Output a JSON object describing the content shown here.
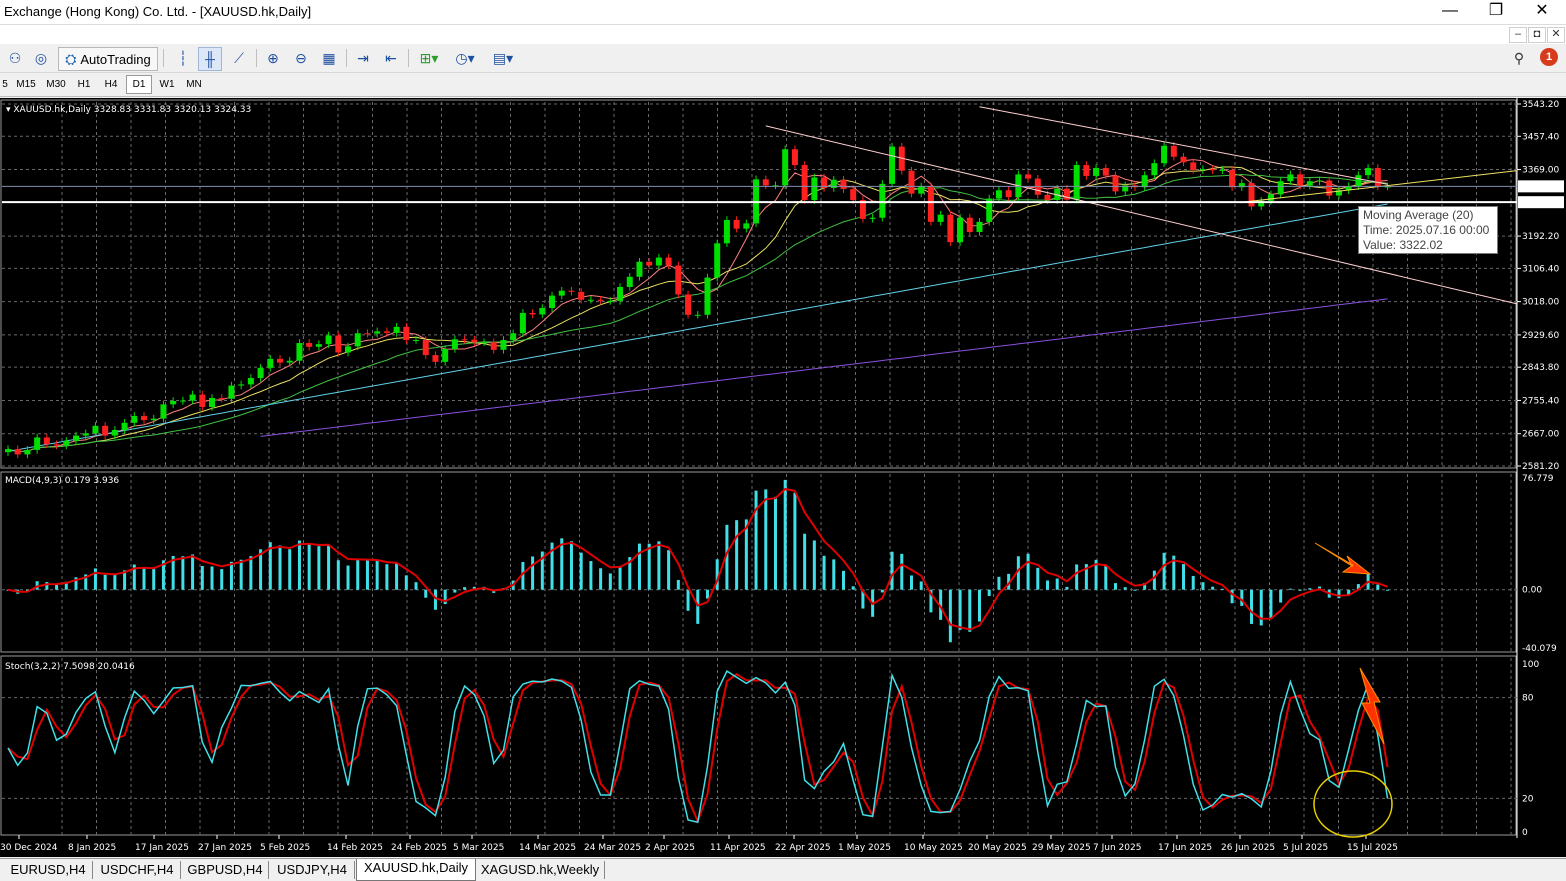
{
  "window": {
    "title": "Exchange (Hong Kong) Co. Ltd. - [XAUUSD.hk,Daily]",
    "minimize": "—",
    "restore": "❐",
    "close": "✕"
  },
  "menubar": {
    "min": "–",
    "restore": "◘",
    "close": "✕"
  },
  "toolbar": {
    "autotrading_label": "AutoTrading",
    "notification_count": "1"
  },
  "timeframes": [
    "5",
    "M15",
    "M30",
    "H1",
    "H4",
    "D1",
    "W1",
    "MN"
  ],
  "selected_timeframe": "D1",
  "main": {
    "header": "XAUUSD.hk,Daily  3328.83 3331.83 3320.13 3324.33",
    "price_ticks": [
      "3543.20",
      "3457.40",
      "3369.00",
      "3192.20",
      "3106.40",
      "3018.00",
      "2929.60",
      "2843.80",
      "2755.40",
      "2667.00",
      "2581.20"
    ],
    "current_price": "3324.33",
    "line_price": "3282.29"
  },
  "tooltip": {
    "line1": "Moving Average (20)",
    "line2": "Time: 2025.07.16 00:00",
    "line3": "Value: 3322.02"
  },
  "macd": {
    "header": "MACD(4,9,3) 0.179 3.936",
    "ticks": [
      "76.779",
      "0.00",
      "-40.079"
    ]
  },
  "stoch": {
    "header": "Stoch(3,2,2) 7.5098 20.0416",
    "ticks": [
      "100",
      "80",
      "20",
      "0"
    ]
  },
  "dates": [
    "30 Dec 2024",
    "8 Jan 2025",
    "17 Jan 2025",
    "27 Jan 2025",
    "5 Feb 2025",
    "14 Feb 2025",
    "24 Feb 2025",
    "5 Mar 2025",
    "14 Mar 2025",
    "24 Mar 2025",
    "2 Apr 2025",
    "11 Apr 2025",
    "22 Apr 2025",
    "1 May 2025",
    "10 May 2025",
    "20 May 2025",
    "29 May 2025",
    "7 Jun 2025",
    "17 Jun 2025",
    "26 Jun 2025",
    "5 Jul 2025",
    "15 Jul 2025"
  ],
  "tabs": [
    "EURUSD,H4",
    "USDCHF,H4",
    "GBPUSD,H4",
    "USDJPY,H4",
    "XAUUSD.hk,Daily",
    "XAGUSD.hk,Weekly"
  ],
  "selected_tab": "XAUUSD.hk,Daily",
  "colors": {
    "bull": "#00e000",
    "bear": "#ff2020",
    "macd_hist": "#40e0e8",
    "signal": "#e00000",
    "ma_fast": "#ff8080",
    "ma_mid": "#e8e060",
    "ma_slow": "#40c040",
    "ma_long": "#60d0e8",
    "ma_200": "#8a50e0",
    "annotation": "#ff3300",
    "circle": "#e8d000"
  },
  "chart_data": {
    "type": "candlestick",
    "symbol": "XAUUSD.hk",
    "x": [
      "2024-12-27",
      "2024-12-30",
      "2024-12-31",
      "2025-01-02",
      "2025-01-03",
      "2025-01-06",
      "2025-01-07",
      "2025-01-08",
      "2025-01-09",
      "2025-01-10",
      "2025-01-13",
      "2025-01-14",
      "2025-01-15",
      "2025-01-16",
      "2025-01-17",
      "2025-01-20",
      "2025-01-21",
      "2025-01-22",
      "2025-01-23",
      "2025-01-24",
      "2025-01-27",
      "2025-01-28",
      "2025-01-29",
      "2025-01-30",
      "2025-01-31",
      "2025-02-03",
      "2025-02-04",
      "2025-02-05",
      "2025-02-06",
      "2025-02-07",
      "2025-02-10",
      "2025-02-11",
      "2025-02-12",
      "2025-02-13",
      "2025-02-14",
      "2025-02-17",
      "2025-02-18",
      "2025-02-19",
      "2025-02-20",
      "2025-02-21",
      "2025-02-24",
      "2025-02-25",
      "2025-02-26",
      "2025-02-27",
      "2025-02-28",
      "2025-03-03",
      "2025-03-04",
      "2025-03-05",
      "2025-03-06",
      "2025-03-07",
      "2025-03-10",
      "2025-03-11",
      "2025-03-12",
      "2025-03-13",
      "2025-03-14",
      "2025-03-17",
      "2025-03-18",
      "2025-03-19",
      "2025-03-20",
      "2025-03-21",
      "2025-03-24",
      "2025-03-25",
      "2025-03-26",
      "2025-03-27",
      "2025-03-28",
      "2025-03-31",
      "2025-04-01",
      "2025-04-02",
      "2025-04-03",
      "2025-04-04",
      "2025-04-07",
      "2025-04-08",
      "2025-04-09",
      "2025-04-10",
      "2025-04-11",
      "2025-04-14",
      "2025-04-15",
      "2025-04-16",
      "2025-04-17",
      "2025-04-18",
      "2025-04-21",
      "2025-04-22",
      "2025-04-23",
      "2025-04-24",
      "2025-04-25",
      "2025-04-28",
      "2025-04-29",
      "2025-04-30",
      "2025-05-01",
      "2025-05-02",
      "2025-05-05",
      "2025-05-06",
      "2025-05-07",
      "2025-05-08",
      "2025-05-09",
      "2025-05-12",
      "2025-05-13",
      "2025-05-14",
      "2025-05-15",
      "2025-05-16",
      "2025-05-19",
      "2025-05-20",
      "2025-05-21",
      "2025-05-22",
      "2025-05-23",
      "2025-05-26",
      "2025-05-27",
      "2025-05-28",
      "2025-05-29",
      "2025-05-30",
      "2025-06-02",
      "2025-06-03",
      "2025-06-04",
      "2025-06-05",
      "2025-06-06",
      "2025-06-09",
      "2025-06-10",
      "2025-06-11",
      "2025-06-12",
      "2025-06-13",
      "2025-06-16",
      "2025-06-17",
      "2025-06-18",
      "2025-06-19",
      "2025-06-20",
      "2025-06-23",
      "2025-06-24",
      "2025-06-25",
      "2025-06-26",
      "2025-06-27",
      "2025-06-30",
      "2025-07-01",
      "2025-07-02",
      "2025-07-03",
      "2025-07-04",
      "2025-07-07",
      "2025-07-08",
      "2025-07-09",
      "2025-07-10",
      "2025-07-11",
      "2025-07-14",
      "2025-07-15",
      "2025-07-16"
    ],
    "close": [
      2626,
      2612,
      2624,
      2657,
      2639,
      2636,
      2648,
      2662,
      2668,
      2688,
      2662,
      2677,
      2696,
      2714,
      2703,
      2707,
      2745,
      2754,
      2755,
      2771,
      2738,
      2762,
      2760,
      2795,
      2798,
      2815,
      2842,
      2866,
      2856,
      2861,
      2908,
      2898,
      2905,
      2928,
      2883,
      2899,
      2934,
      2933,
      2939,
      2935,
      2951,
      2916,
      2916,
      2876,
      2858,
      2892,
      2918,
      2917,
      2910,
      2910,
      2890,
      2916,
      2934,
      2988,
      2984,
      3001,
      3034,
      3047,
      3044,
      3023,
      3023,
      3020,
      3020,
      3057,
      3084,
      3124,
      3114,
      3135,
      3114,
      3037,
      2983,
      2983,
      3082,
      3173,
      3235,
      3212,
      3226,
      3343,
      3327,
      3327,
      3423,
      3381,
      3288,
      3348,
      3320,
      3342,
      3317,
      3288,
      3238,
      3241,
      3331,
      3430,
      3366,
      3305,
      3324,
      3230,
      3249,
      3176,
      3241,
      3203,
      3230,
      3292,
      3314,
      3296,
      3356,
      3345,
      3302,
      3288,
      3318,
      3289,
      3381,
      3352,
      3373,
      3353,
      3311,
      3327,
      3322,
      3354,
      3386,
      3432,
      3403,
      3388,
      3368,
      3370,
      3367,
      3368,
      3322,
      3333,
      3271,
      3286,
      3303,
      3338,
      3356,
      3326,
      3338,
      3340,
      3300,
      3314,
      3325,
      3354,
      3373,
      3324,
      3324
    ],
    "ma_periods": [
      5,
      10,
      20,
      50,
      100,
      200
    ],
    "tooltip_value": 3322.02,
    "macd": {
      "fast": 4,
      "slow": 9,
      "signal": 3,
      "value": 0.179,
      "signal_value": 3.936,
      "range": [
        -40.079,
        76.779
      ]
    },
    "stochastic": {
      "k": 3,
      "d": 2,
      "slowing": 2,
      "main": 7.5098,
      "signal": 20.0416,
      "levels": [
        20,
        80
      ],
      "range": [
        0,
        100
      ]
    },
    "price_range": [
      2581.2,
      3543.2
    ]
  }
}
